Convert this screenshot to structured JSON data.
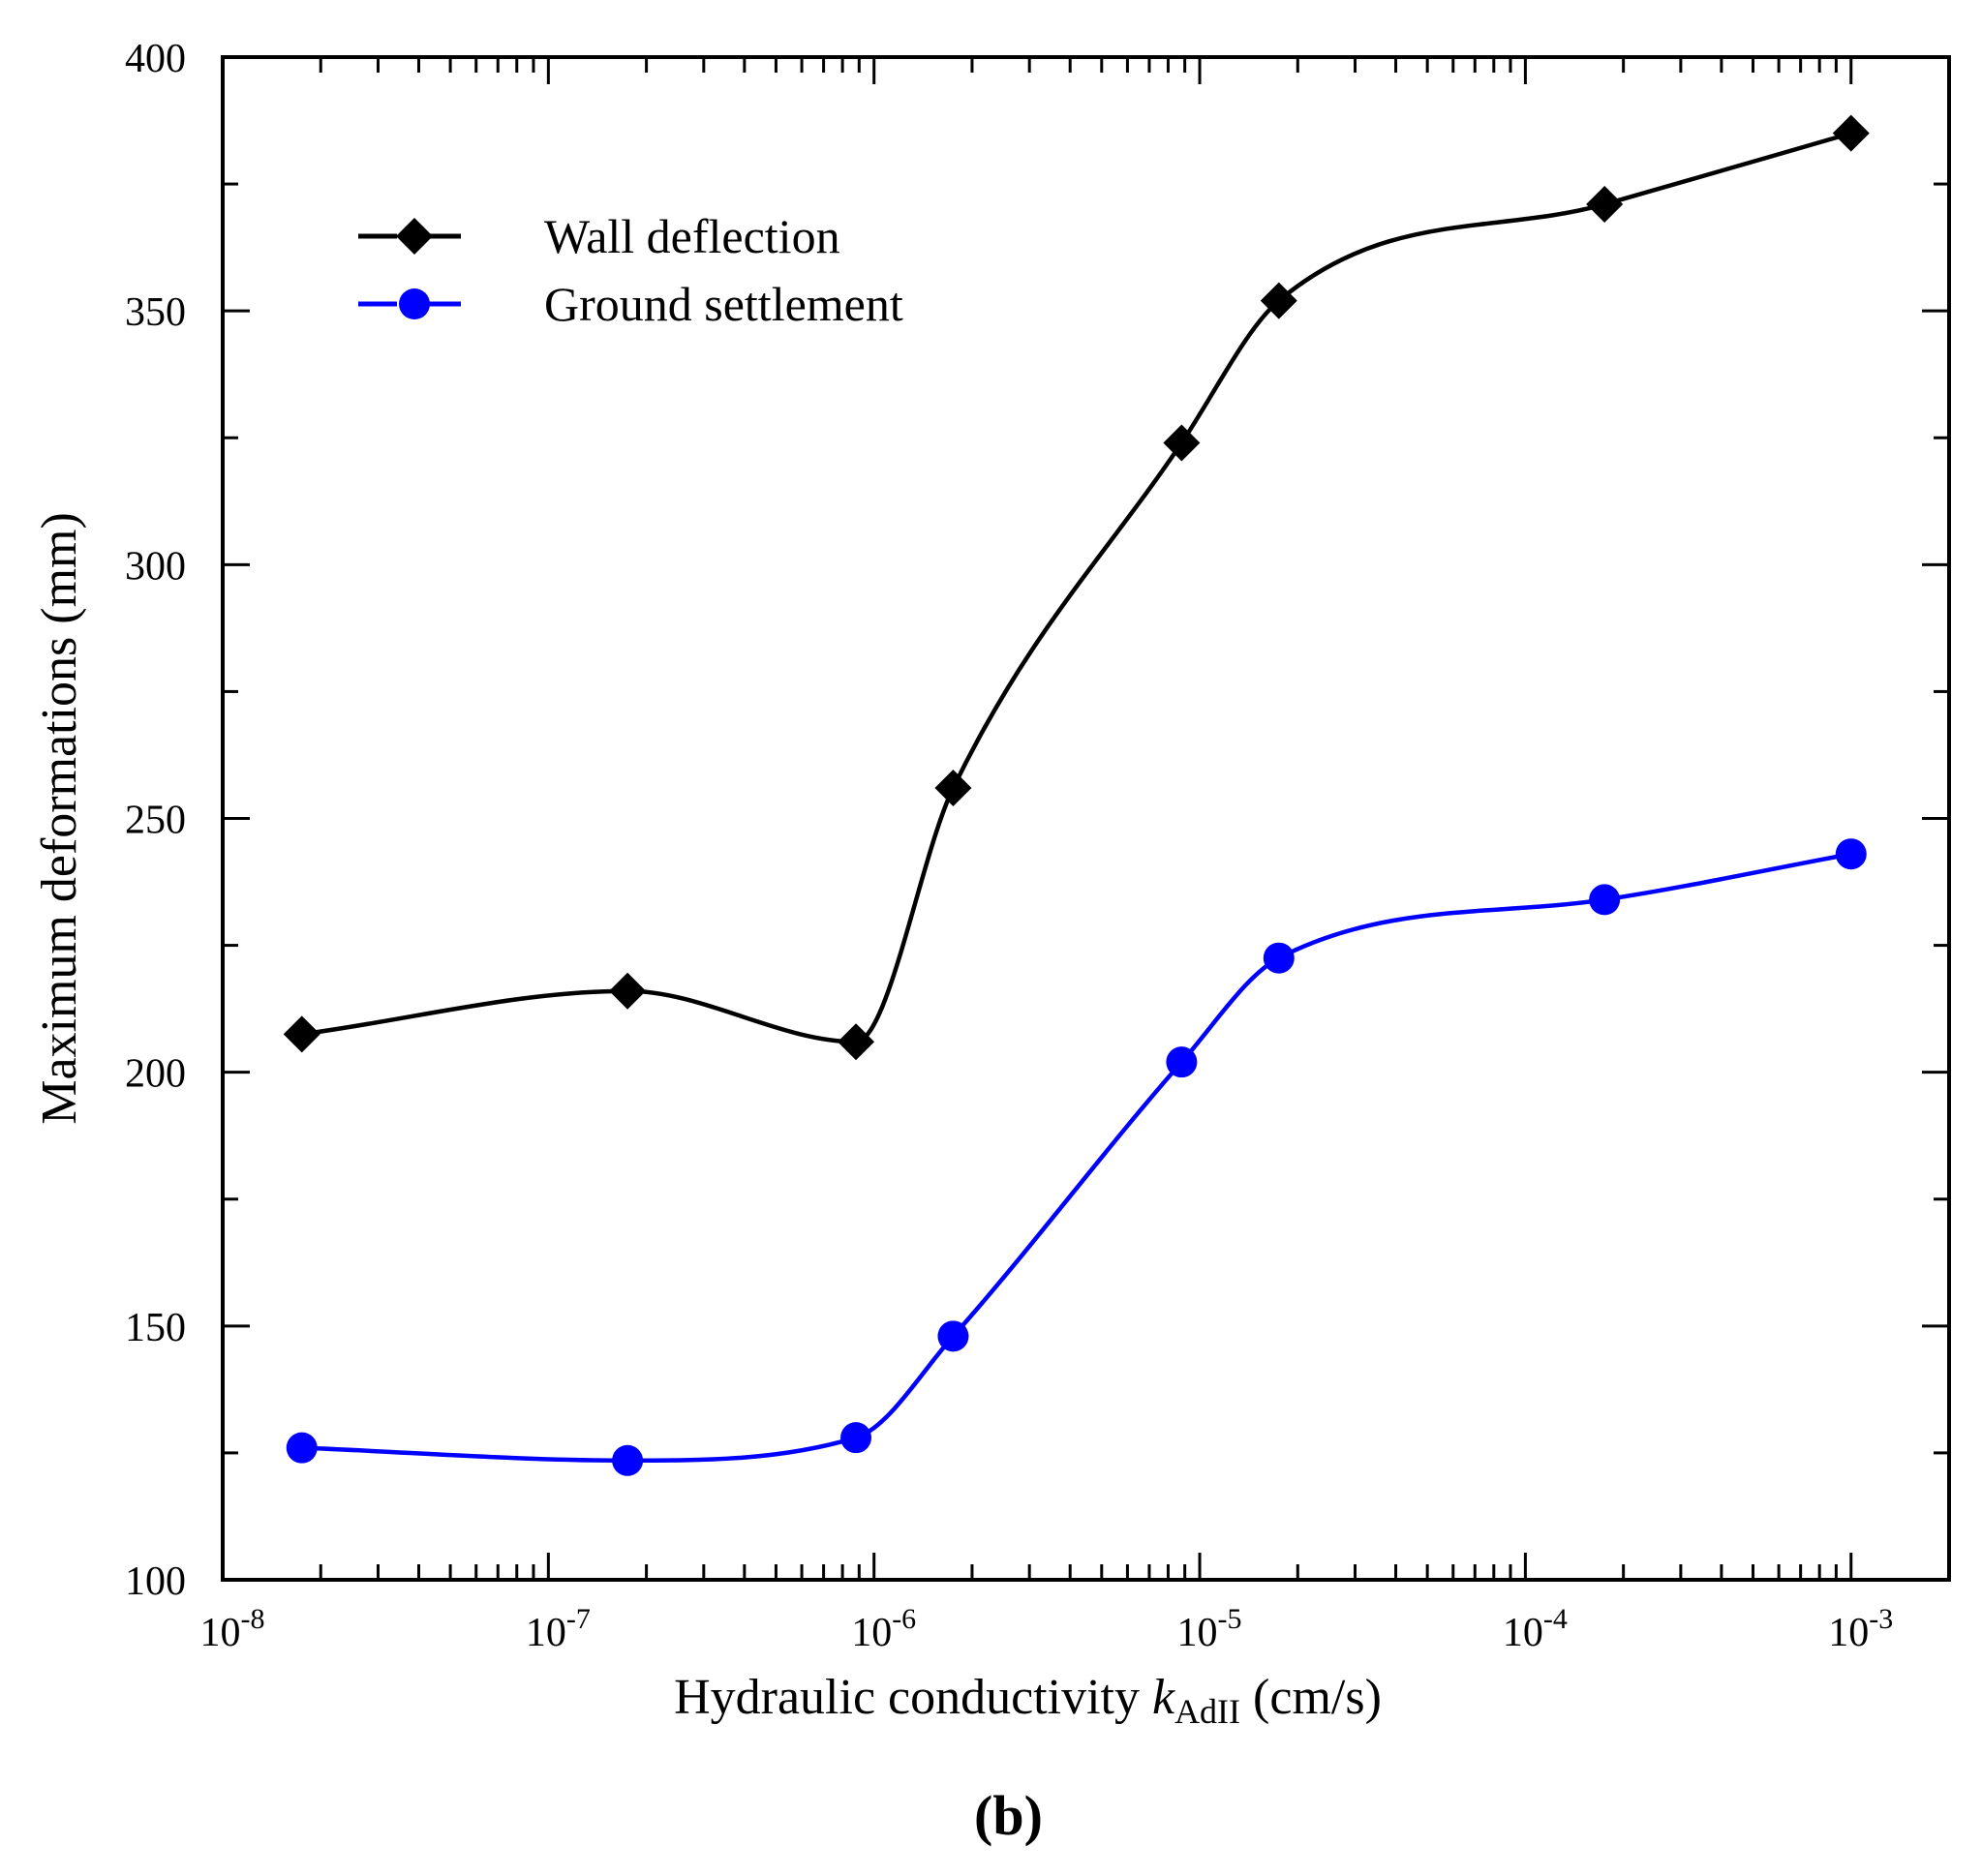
{
  "chart_data": {
    "type": "line",
    "panel_label": "(b)",
    "xlabel": {
      "prefix": "Hydraulic conductivity ",
      "variable": "k",
      "subscript": "AdII",
      "suffix": " (cm/s)"
    },
    "ylabel": "Maximum deformations (mm)",
    "xscale": "log",
    "xlim": [
      1e-08,
      0.002
    ],
    "ylim": [
      100,
      400
    ],
    "yticks": [
      "100",
      "150",
      "200",
      "250",
      "300",
      "350",
      "400"
    ],
    "xticks": [
      {
        "base": "10",
        "exp": "-8"
      },
      {
        "base": "10",
        "exp": "-7"
      },
      {
        "base": "10",
        "exp": "-6"
      },
      {
        "base": "10",
        "exp": "-5"
      },
      {
        "base": "10",
        "exp": "-4"
      },
      {
        "base": "10",
        "exp": "-3"
      }
    ],
    "legend_position": "top-left",
    "grid": false,
    "series": [
      {
        "name": "Wall deflection",
        "color": "#000000",
        "marker": "diamond",
        "x": [
          1.75e-08,
          1.75e-07,
          8.8e-07,
          1.75e-06,
          8.8e-06,
          1.75e-05,
          0.000175,
          0.001
        ],
        "values": [
          207.5,
          216,
          206,
          256,
          324,
          352,
          371,
          385
        ]
      },
      {
        "name": "Ground settlement",
        "color": "#0000ff",
        "marker": "circle",
        "x": [
          1.75e-08,
          1.75e-07,
          8.8e-07,
          1.75e-06,
          8.8e-06,
          1.75e-05,
          0.000175,
          0.001
        ],
        "values": [
          126,
          123.5,
          128,
          148,
          202,
          222.5,
          234,
          243
        ]
      }
    ]
  }
}
